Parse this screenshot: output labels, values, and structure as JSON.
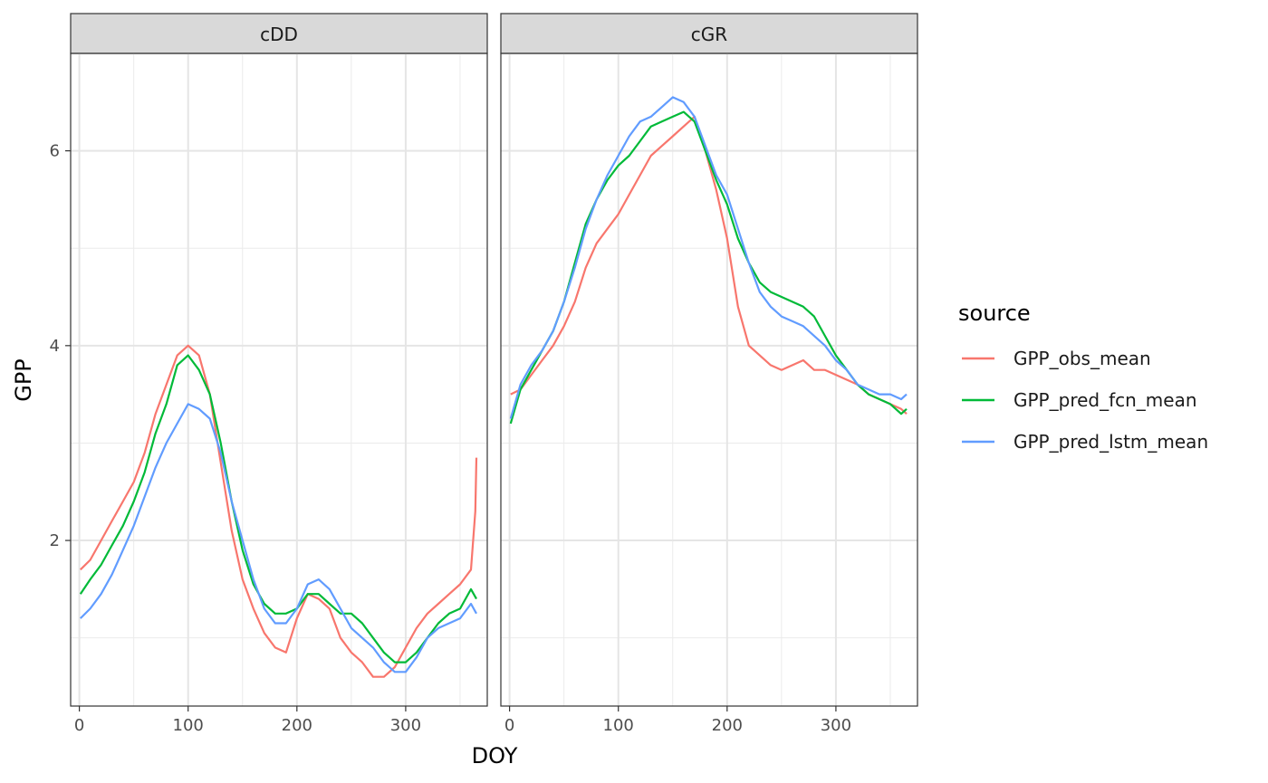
{
  "chart_data": {
    "type": "line",
    "xlabel": "DOY",
    "ylabel": "GPP",
    "legend_title": "source",
    "legend_position": "right",
    "grid": true,
    "xlim": [
      -8,
      375
    ],
    "ylim": [
      0.3,
      7.0
    ],
    "x_ticks": [
      0,
      100,
      200,
      300
    ],
    "y_ticks": [
      2,
      4,
      6
    ],
    "series_names": [
      "GPP_obs_mean",
      "GPP_pred_fcn_mean",
      "GPP_pred_lstm_mean"
    ],
    "colors": {
      "GPP_obs_mean": "#F8766D",
      "GPP_pred_fcn_mean": "#00BA38",
      "GPP_pred_lstm_mean": "#619CFF"
    },
    "panels": [
      {
        "strip": "cDD",
        "series": [
          {
            "name": "GPP_obs_mean",
            "x": [
              1,
              10,
              20,
              30,
              40,
              50,
              60,
              70,
              80,
              90,
              100,
              110,
              120,
              130,
              140,
              150,
              160,
              170,
              180,
              190,
              200,
              210,
              220,
              230,
              240,
              250,
              260,
              270,
              280,
              290,
              300,
              310,
              320,
              330,
              340,
              350,
              360,
              364,
              365
            ],
            "y": [
              1.7,
              1.8,
              2.0,
              2.2,
              2.4,
              2.6,
              2.9,
              3.3,
              3.6,
              3.9,
              4.0,
              3.9,
              3.5,
              2.8,
              2.1,
              1.6,
              1.3,
              1.05,
              0.9,
              0.85,
              1.2,
              1.45,
              1.4,
              1.3,
              1.0,
              0.85,
              0.75,
              0.6,
              0.6,
              0.7,
              0.9,
              1.1,
              1.25,
              1.35,
              1.45,
              1.55,
              1.7,
              2.3,
              2.85
            ]
          },
          {
            "name": "GPP_pred_fcn_mean",
            "x": [
              1,
              10,
              20,
              30,
              40,
              50,
              60,
              70,
              80,
              90,
              100,
              110,
              120,
              130,
              140,
              150,
              160,
              170,
              180,
              190,
              200,
              210,
              220,
              230,
              240,
              250,
              260,
              270,
              280,
              290,
              300,
              310,
              320,
              330,
              340,
              350,
              360,
              365
            ],
            "y": [
              1.45,
              1.6,
              1.75,
              1.95,
              2.15,
              2.4,
              2.7,
              3.1,
              3.4,
              3.8,
              3.9,
              3.75,
              3.5,
              3.0,
              2.4,
              1.9,
              1.55,
              1.35,
              1.25,
              1.25,
              1.3,
              1.45,
              1.45,
              1.35,
              1.25,
              1.25,
              1.15,
              1.0,
              0.85,
              0.75,
              0.75,
              0.85,
              1.0,
              1.15,
              1.25,
              1.3,
              1.5,
              1.4
            ]
          },
          {
            "name": "GPP_pred_lstm_mean",
            "x": [
              1,
              10,
              20,
              30,
              40,
              50,
              60,
              70,
              80,
              90,
              100,
              110,
              120,
              130,
              140,
              150,
              160,
              170,
              180,
              190,
              200,
              210,
              220,
              230,
              240,
              250,
              260,
              270,
              280,
              290,
              300,
              310,
              320,
              330,
              340,
              350,
              360,
              365
            ],
            "y": [
              1.2,
              1.3,
              1.45,
              1.65,
              1.9,
              2.15,
              2.45,
              2.75,
              3.0,
              3.2,
              3.4,
              3.35,
              3.25,
              2.9,
              2.4,
              2.0,
              1.6,
              1.3,
              1.15,
              1.15,
              1.3,
              1.55,
              1.6,
              1.5,
              1.3,
              1.1,
              1.0,
              0.9,
              0.75,
              0.65,
              0.65,
              0.8,
              1.0,
              1.1,
              1.15,
              1.2,
              1.35,
              1.25
            ]
          }
        ]
      },
      {
        "strip": "cGR",
        "series": [
          {
            "name": "GPP_obs_mean",
            "x": [
              1,
              10,
              20,
              30,
              40,
              50,
              60,
              70,
              80,
              90,
              100,
              110,
              120,
              130,
              140,
              150,
              160,
              170,
              180,
              190,
              200,
              210,
              220,
              230,
              240,
              250,
              260,
              270,
              280,
              290,
              300,
              310,
              320,
              330,
              340,
              350,
              360,
              365
            ],
            "y": [
              3.5,
              3.55,
              3.7,
              3.85,
              4.0,
              4.2,
              4.45,
              4.8,
              5.05,
              5.2,
              5.35,
              5.55,
              5.75,
              5.95,
              6.05,
              6.15,
              6.25,
              6.35,
              6.0,
              5.6,
              5.1,
              4.4,
              4.0,
              3.9,
              3.8,
              3.75,
              3.8,
              3.85,
              3.75,
              3.75,
              3.7,
              3.65,
              3.6,
              3.5,
              3.45,
              3.4,
              3.35,
              3.3
            ]
          },
          {
            "name": "GPP_pred_fcn_mean",
            "x": [
              1,
              10,
              20,
              30,
              40,
              50,
              60,
              70,
              80,
              90,
              100,
              110,
              120,
              130,
              140,
              150,
              160,
              170,
              180,
              190,
              200,
              210,
              220,
              230,
              240,
              250,
              260,
              270,
              280,
              290,
              300,
              310,
              320,
              330,
              340,
              350,
              360,
              365
            ],
            "y": [
              3.2,
              3.55,
              3.75,
              3.95,
              4.15,
              4.45,
              4.85,
              5.25,
              5.5,
              5.7,
              5.85,
              5.95,
              6.1,
              6.25,
              6.3,
              6.35,
              6.4,
              6.3,
              6.0,
              5.7,
              5.45,
              5.1,
              4.85,
              4.65,
              4.55,
              4.5,
              4.45,
              4.4,
              4.3,
              4.1,
              3.9,
              3.75,
              3.6,
              3.5,
              3.45,
              3.4,
              3.3,
              3.35
            ]
          },
          {
            "name": "GPP_pred_lstm_mean",
            "x": [
              1,
              10,
              20,
              30,
              40,
              50,
              60,
              70,
              80,
              90,
              100,
              110,
              120,
              130,
              140,
              150,
              160,
              170,
              180,
              190,
              200,
              210,
              220,
              230,
              240,
              250,
              260,
              270,
              280,
              290,
              300,
              310,
              320,
              330,
              340,
              350,
              360,
              365
            ],
            "y": [
              3.25,
              3.6,
              3.8,
              3.95,
              4.15,
              4.45,
              4.8,
              5.2,
              5.5,
              5.75,
              5.95,
              6.15,
              6.3,
              6.35,
              6.45,
              6.55,
              6.5,
              6.35,
              6.05,
              5.75,
              5.55,
              5.2,
              4.85,
              4.55,
              4.4,
              4.3,
              4.25,
              4.2,
              4.1,
              4.0,
              3.85,
              3.75,
              3.6,
              3.55,
              3.5,
              3.5,
              3.45,
              3.5
            ]
          }
        ]
      }
    ]
  }
}
